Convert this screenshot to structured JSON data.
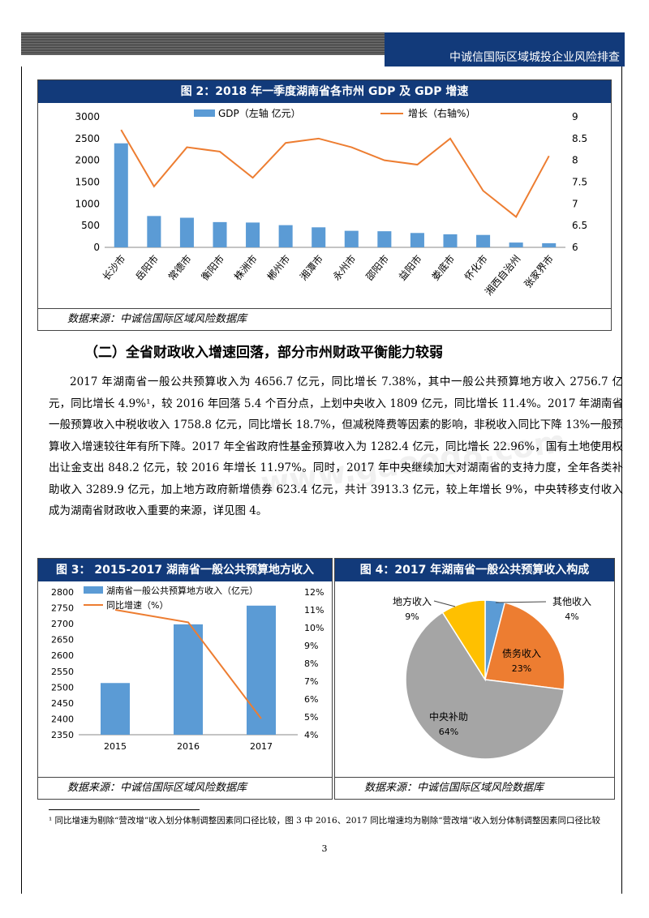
{
  "header": {
    "title": "中诚信国际区域城投企业风险排查"
  },
  "fig2": {
    "title": "图 2：2018 年一季度湖南省各市州 GDP 及 GDP 增速",
    "source": "数据来源：中诚信国际区域风险数据库"
  },
  "fig3": {
    "title": "图 3：  2015-2017 湖南省一般公共预算地方收入",
    "source": "数据来源：中诚信国际区域风险数据库"
  },
  "fig4": {
    "title": "图 4：2017 年湖南省一般公共预算收入构成",
    "source": "数据来源：中诚信国际区域风险数据库"
  },
  "section_title": "（二）全省财政收入增速回落，部分市州财政平衡能力较弱",
  "paragraph": "2017 年湖南省一般公共预算收入为 4656.7 亿元，同比增长 7.38%，其中一般公共预算地方收入 2756.7 亿元，同比增长 4.9%¹，较 2016 年回落 5.4 个百分点，上划中央收入 1809 亿元，同比增长 11.4%。2017 年湖南省一般预算收入中税收收入 1758.8 亿元，同比增长 18.7%，但减税降费等因素的影响，非税收入同比下降 13%一般预算收入增速较往年有所下降。2017 年全省政府性基金预算收入为 1282.4 亿元，同比增长 22.96%，国有土地使用权出让金支出 848.2 亿元，较 2016 年增长 11.97%。同时，2017 年中央继续加大对湖南省的支持力度，全年各类补助收入 3289.9 亿元，加上地方政府新增债券 623.4 亿元，共计 3913.3 亿元，较上年增长 9%，中央转移支付收入成为湖南省财政收入重要的来源，详见图 4。",
  "footnote": "¹ 同比增速为剔除“营改增”收入划分体制调整因素同口径比较，图 3 中 2016、2017 同比增速均为剔除“营改增”收入划分体制调整因素同口径比较",
  "page_number": "3",
  "watermark": "www.gaoog8.com",
  "chart_data": [
    {
      "type": "bar",
      "title": "图 2：2018 年一季度湖南省各市州 GDP 及 GDP 增速",
      "categories": [
        "长沙市",
        "岳阳市",
        "常德市",
        "衡阳市",
        "株洲市",
        "郴州市",
        "湘潭市",
        "永州市",
        "邵阳市",
        "益阳市",
        "娄底市",
        "怀化市",
        "湘西自治州",
        "张家界市"
      ],
      "series": [
        {
          "name": "GDP（左轴 亿元）",
          "type": "bar",
          "axis": "left",
          "values": [
            2390,
            720,
            680,
            580,
            570,
            510,
            460,
            380,
            370,
            330,
            300,
            285,
            110,
            95
          ]
        },
        {
          "name": "增长（右轴%）",
          "type": "line",
          "axis": "right",
          "values": [
            8.7,
            7.4,
            8.3,
            8.2,
            7.6,
            8.4,
            8.5,
            8.3,
            8.0,
            7.9,
            8.5,
            7.3,
            6.7,
            8.1
          ]
        }
      ],
      "ylim_left": [
        0,
        3000
      ],
      "ylim_right": [
        6,
        9
      ],
      "yticks_left": [
        "0",
        "500",
        "1000",
        "1500",
        "2000",
        "2500",
        "3000"
      ],
      "yticks_right": [
        "6",
        "6.5",
        "7",
        "7.5",
        "8",
        "8.5",
        "9"
      ],
      "legend": "top",
      "colors": {
        "bar": "#5b9bd5",
        "line": "#ed7d31"
      }
    },
    {
      "type": "bar",
      "title": "图 3：  2015-2017 湖南省一般公共预算地方收入",
      "categories": [
        "2015",
        "2016",
        "2017"
      ],
      "series": [
        {
          "name": "湖南省一般公共预算地方收入（亿元）",
          "type": "bar",
          "axis": "left",
          "values": [
            2513,
            2698,
            2757
          ]
        },
        {
          "name": "同比增速（%）",
          "type": "line",
          "axis": "right",
          "values": [
            11.0,
            10.3,
            4.9
          ]
        }
      ],
      "ylim_left": [
        2350,
        2800
      ],
      "ylim_right": [
        4,
        12
      ],
      "yticks_left": [
        "2350",
        "2400",
        "2450",
        "2500",
        "2550",
        "2600",
        "2650",
        "2700",
        "2750",
        "2800"
      ],
      "yticks_right": [
        "4%",
        "5%",
        "6%",
        "7%",
        "8%",
        "9%",
        "10%",
        "11%",
        "12%"
      ],
      "legend": "top-left",
      "colors": {
        "bar": "#5b9bd5",
        "line": "#ed7d31"
      }
    },
    {
      "type": "pie",
      "title": "图 4：2017 年湖南省一般公共预算收入构成",
      "slices": [
        {
          "name": "其他收入",
          "value": 4,
          "label": "4%",
          "color": "#5b9bd5"
        },
        {
          "name": "债务收入",
          "value": 23,
          "label": "23%",
          "color": "#ed7d31"
        },
        {
          "name": "中央补助",
          "value": 64,
          "label": "64%",
          "color": "#a5a5a5"
        },
        {
          "name": "地方收入",
          "value": 9,
          "label": "9%",
          "color": "#ffc000"
        }
      ]
    }
  ]
}
